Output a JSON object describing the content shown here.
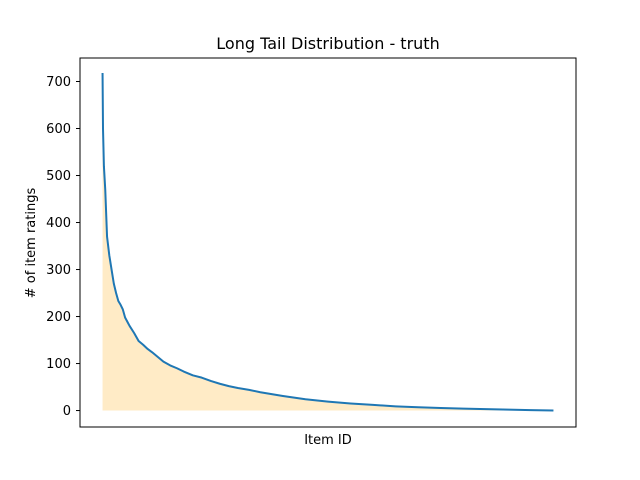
{
  "chart_data": {
    "type": "area",
    "title": "Long Tail Distribution - truth",
    "xlabel": "Item ID",
    "ylabel": "# of item ratings",
    "ylim": [
      -35,
      750
    ],
    "xlim": [
      -50,
      1050
    ],
    "yticks": [
      0,
      100,
      200,
      300,
      400,
      500,
      600,
      700
    ],
    "xticks_shown": false,
    "grid": false,
    "legend": "none",
    "x_range": [
      0,
      1000
    ],
    "series": [
      {
        "x": [
          0,
          1,
          3,
          6,
          10,
          15,
          20,
          25,
          30,
          35,
          40,
          45,
          50,
          60,
          70,
          80,
          90,
          100,
          110,
          120,
          135,
          150,
          165,
          180,
          200,
          220,
          240,
          260,
          280,
          300,
          325,
          350,
          375,
          400,
          450,
          500,
          550,
          600,
          650,
          700,
          750,
          800,
          850,
          900,
          950,
          1000
        ],
        "values": [
          718,
          600,
          520,
          470,
          370,
          330,
          300,
          270,
          250,
          233,
          225,
          215,
          198,
          180,
          165,
          148,
          140,
          131,
          124,
          116,
          104,
          96,
          90,
          83,
          75,
          70,
          63,
          57,
          52,
          48,
          44,
          39,
          35,
          31,
          24,
          19,
          15,
          12,
          9,
          7,
          5.5,
          4,
          3,
          2,
          1,
          0
        ],
        "line_color": "#1f77b4",
        "fill_color": "#ffebc6"
      }
    ]
  }
}
